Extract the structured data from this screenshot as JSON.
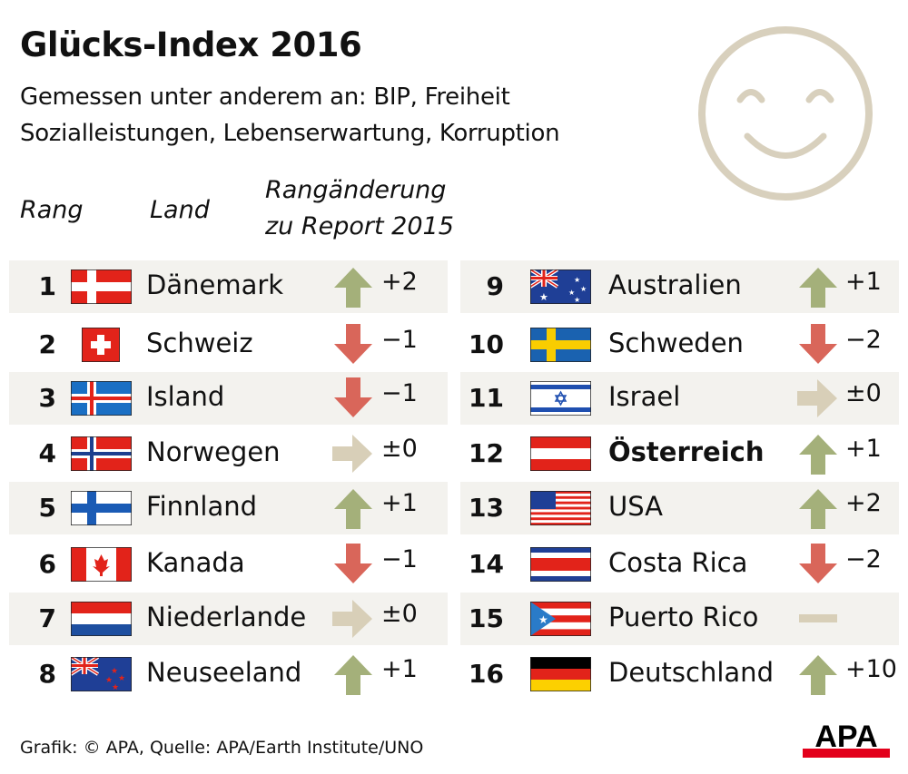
{
  "title": "Glücks-Index 2016",
  "subtitle_lines": [
    "Gemessen unter anderem an: BIP, Freiheit",
    "Sozialleistungen, Lebenserwartung, Korruption"
  ],
  "headers": {
    "rank": "Rang",
    "country": "Land",
    "change_line1": "Rangänderung",
    "change_line2": "zu Report 2015"
  },
  "colors": {
    "up": "#a4b07a",
    "down": "#d9665a",
    "same": "#d8cfb8",
    "shade": "#f3f2ee",
    "smiley": "#d8d0bd"
  },
  "rows": [
    {
      "rank": "1",
      "country": "Dänemark",
      "flag": "dk",
      "trend": "up",
      "change": "+2"
    },
    {
      "rank": "2",
      "country": "Schweiz",
      "flag": "ch",
      "trend": "down",
      "change": "−1"
    },
    {
      "rank": "3",
      "country": "Island",
      "flag": "is",
      "trend": "down",
      "change": "−1"
    },
    {
      "rank": "4",
      "country": "Norwegen",
      "flag": "no",
      "trend": "same",
      "change": "±0"
    },
    {
      "rank": "5",
      "country": "Finnland",
      "flag": "fi",
      "trend": "up",
      "change": "+1"
    },
    {
      "rank": "6",
      "country": "Kanada",
      "flag": "ca",
      "trend": "down",
      "change": "−1"
    },
    {
      "rank": "7",
      "country": "Niederlande",
      "flag": "nl",
      "trend": "same",
      "change": "±0"
    },
    {
      "rank": "8",
      "country": "Neuseeland",
      "flag": "nz",
      "trend": "up",
      "change": "+1"
    },
    {
      "rank": "9",
      "country": "Australien",
      "flag": "au",
      "trend": "up",
      "change": "+1"
    },
    {
      "rank": "10",
      "country": "Schweden",
      "flag": "se",
      "trend": "down",
      "change": "−2"
    },
    {
      "rank": "11",
      "country": "Israel",
      "flag": "il",
      "trend": "same",
      "change": "±0"
    },
    {
      "rank": "12",
      "country": "Österreich",
      "flag": "at",
      "trend": "up",
      "change": "+1",
      "highlight": true
    },
    {
      "rank": "13",
      "country": "USA",
      "flag": "us",
      "trend": "up",
      "change": "+2"
    },
    {
      "rank": "14",
      "country": "Costa Rica",
      "flag": "cr",
      "trend": "down",
      "change": "−2"
    },
    {
      "rank": "15",
      "country": "Puerto Rico",
      "flag": "pr",
      "trend": "new",
      "change": ""
    },
    {
      "rank": "16",
      "country": "Deutschland",
      "flag": "de",
      "trend": "up",
      "change": "+10"
    }
  ],
  "footer": "Grafik: © APA, Quelle: APA/Earth Institute/UNO",
  "logo_text": "APA"
}
